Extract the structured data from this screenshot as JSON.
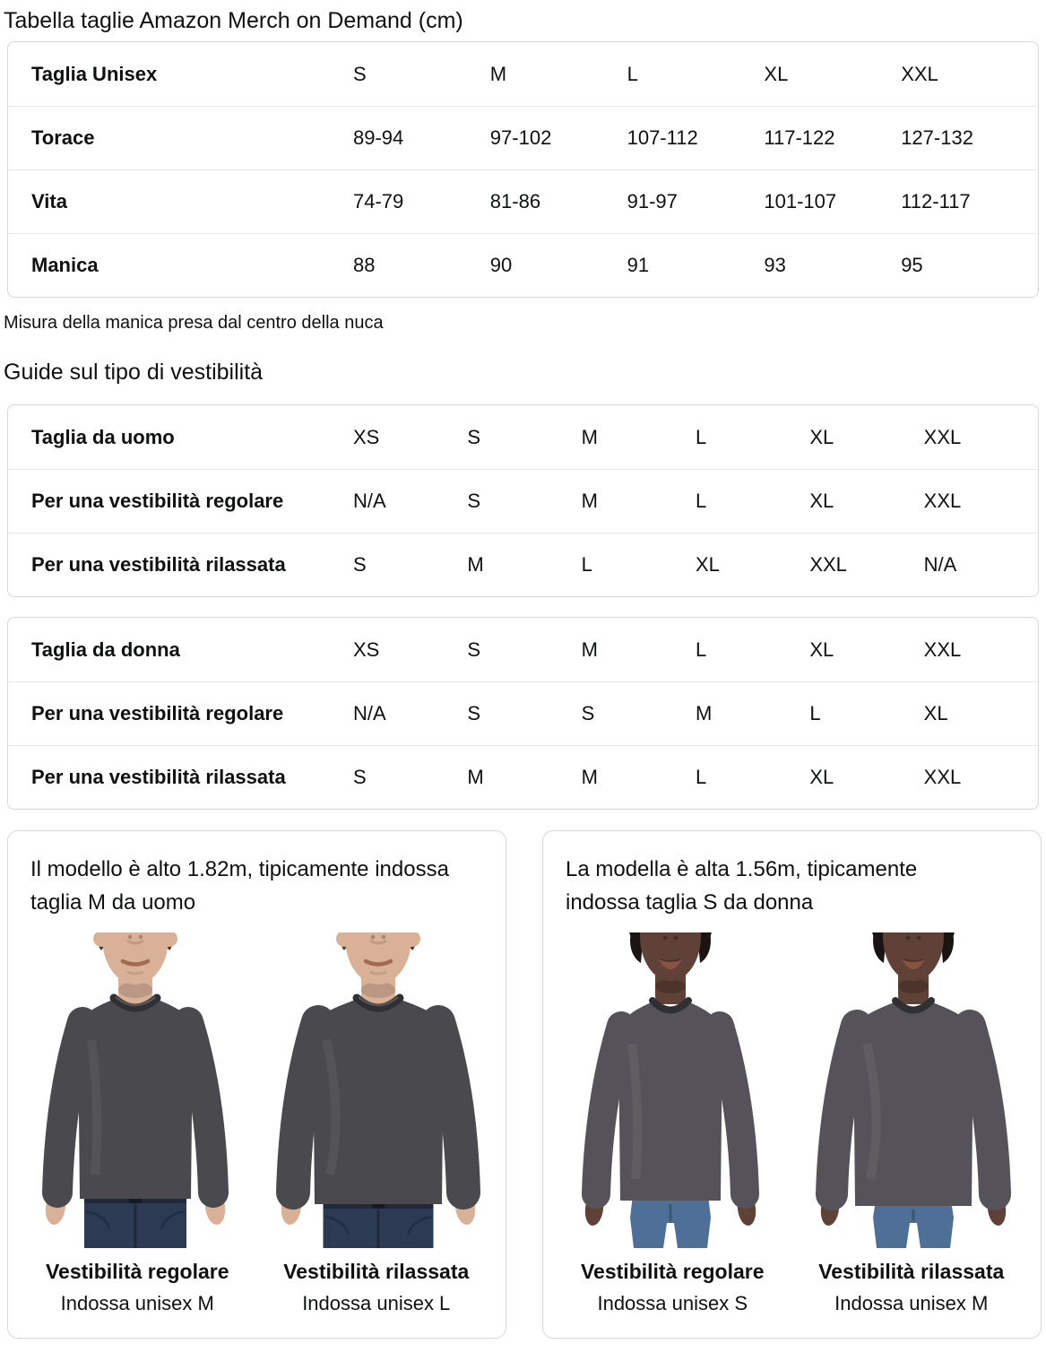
{
  "page": {
    "title": "Tabella taglie Amazon Merch on Demand (cm)",
    "note": "Misura della manica presa dal centro della nuca",
    "fit_guide_heading": "Guide sul tipo di vestibilità"
  },
  "size_table": {
    "rows": [
      {
        "label": "Taglia Unisex",
        "values": [
          "S",
          "M",
          "L",
          "XL",
          "XXL"
        ]
      },
      {
        "label": "Torace",
        "values": [
          "89-94",
          "97-102",
          "107-112",
          "117-122",
          "127-132"
        ]
      },
      {
        "label": "Vita",
        "values": [
          "74-79",
          "81-86",
          "91-97",
          "101-107",
          "112-117"
        ]
      },
      {
        "label": "Manica",
        "values": [
          "88",
          "90",
          "91",
          "93",
          "95"
        ]
      }
    ]
  },
  "men_fit_table": {
    "rows": [
      {
        "label": "Taglia da uomo",
        "values": [
          "XS",
          "S",
          "M",
          "L",
          "XL",
          "XXL"
        ]
      },
      {
        "label": "Per una vestibilità regolare",
        "values": [
          "N/A",
          "S",
          "M",
          "L",
          "XL",
          "XXL"
        ]
      },
      {
        "label": "Per una vestibilità rilassata",
        "values": [
          "S",
          "M",
          "L",
          "XL",
          "XXL",
          "N/A"
        ]
      }
    ]
  },
  "women_fit_table": {
    "rows": [
      {
        "label": "Taglia da donna",
        "values": [
          "XS",
          "S",
          "M",
          "L",
          "XL",
          "XXL"
        ]
      },
      {
        "label": "Per una vestibilità regolare",
        "values": [
          "N/A",
          "S",
          "S",
          "M",
          "L",
          "XL"
        ]
      },
      {
        "label": "Per una vestibilità rilassata",
        "values": [
          "S",
          "M",
          "M",
          "L",
          "XL",
          "XXL"
        ]
      }
    ]
  },
  "model_cards": [
    {
      "description": "Il modello è alto 1.82m, tipicamente indossa taglia M da uomo",
      "photos": [
        {
          "fit_title": "Vestibilità regolare",
          "size_line": "Indossa unisex M"
        },
        {
          "fit_title": "Vestibilità rilassata",
          "size_line": "Indossa unisex L"
        }
      ]
    },
    {
      "description": "La modella è alta 1.56m, tipicamente indossa taglia S da donna",
      "photos": [
        {
          "fit_title": "Vestibilità regolare",
          "size_line": "Indossa unisex S"
        },
        {
          "fit_title": "Vestibilità rilassata",
          "size_line": "Indossa unisex M"
        }
      ]
    }
  ],
  "colors": {
    "text": "#0f1111",
    "card_border": "#d5d9d9",
    "row_divider": "#e7e7e7",
    "shirt_men": "#4a494e",
    "shirt_women": "#565259",
    "jeans_men": "#2c3a54",
    "jeans_women": "#4f7096",
    "skin_man": "#d9b197",
    "skin_woman": "#5f4136",
    "hair_man": "#463625",
    "hair_woman": "#1a1412"
  }
}
